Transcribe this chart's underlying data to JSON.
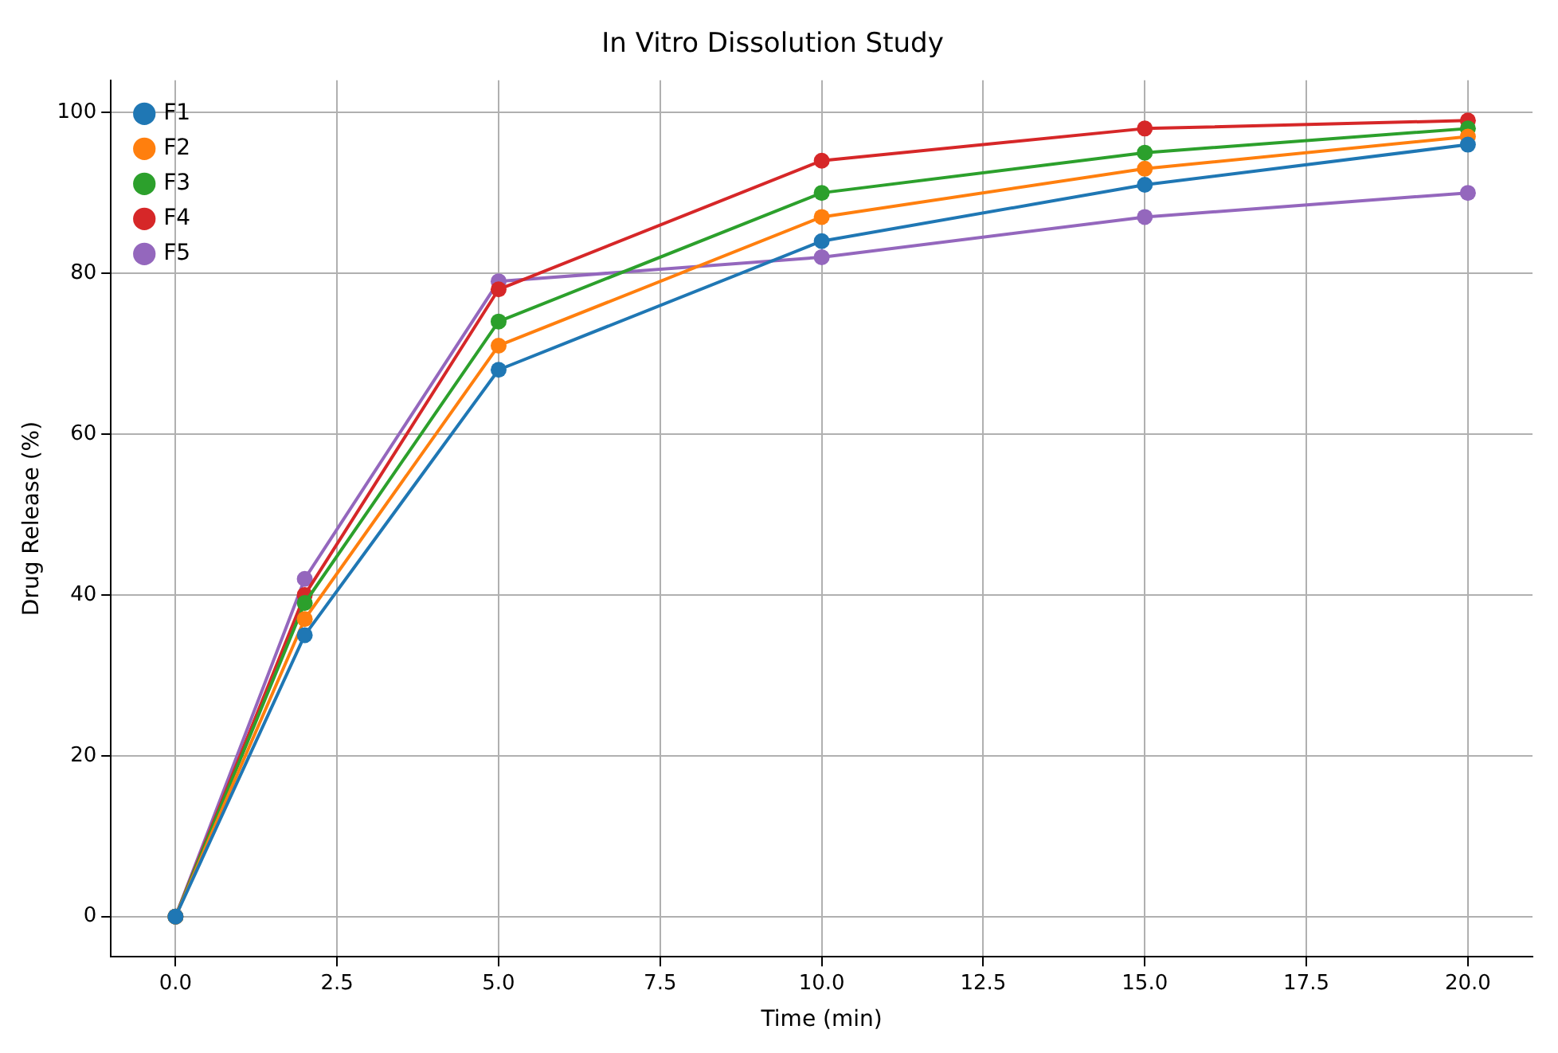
{
  "chart_data": {
    "type": "line",
    "title": "In Vitro Dissolution Study",
    "xlabel": "Time (min)",
    "ylabel": "Drug Release (%)",
    "x": [
      0,
      2,
      5,
      10,
      15,
      20
    ],
    "series": [
      {
        "name": "F1",
        "color": "#1f77b4",
        "values": [
          0,
          35,
          68,
          84,
          91,
          96
        ]
      },
      {
        "name": "F2",
        "color": "#ff7f0e",
        "values": [
          0,
          37,
          71,
          87,
          93,
          97
        ]
      },
      {
        "name": "F3",
        "color": "#2ca02c",
        "values": [
          0,
          39,
          74,
          90,
          95,
          98
        ]
      },
      {
        "name": "F4",
        "color": "#d62728",
        "values": [
          0,
          40,
          78,
          94,
          98,
          99
        ]
      },
      {
        "name": "F5",
        "color": "#9467bd",
        "values": [
          0,
          42,
          79,
          82,
          87,
          90
        ]
      }
    ],
    "xlim": [
      -1,
      21
    ],
    "xticks": [
      {
        "value": 0,
        "label": "0.0"
      },
      {
        "value": 2.5,
        "label": "2.5"
      },
      {
        "value": 5,
        "label": "5.0"
      },
      {
        "value": 7.5,
        "label": "7.5"
      },
      {
        "value": 10,
        "label": "10.0"
      },
      {
        "value": 12.5,
        "label": "12.5"
      },
      {
        "value": 15,
        "label": "15.0"
      },
      {
        "value": 17.5,
        "label": "17.5"
      },
      {
        "value": 20,
        "label": "20.0"
      }
    ],
    "ylim": [
      -5,
      104
    ],
    "yticks": [
      0,
      20,
      40,
      60,
      80,
      100
    ],
    "grid": true,
    "legend": "top left",
    "marker": "circle",
    "line_style": "solid"
  }
}
